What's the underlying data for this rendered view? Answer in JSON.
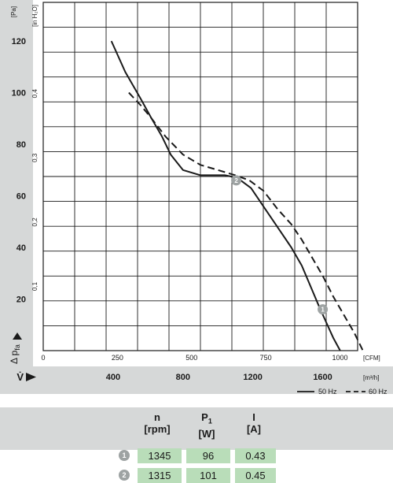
{
  "chart_data": {
    "type": "line",
    "y_unit_left": "[Pa]",
    "y_unit_right": "[in H₂O]",
    "y_ticks_pa": [
      "20",
      "40",
      "60",
      "80",
      "100",
      "120"
    ],
    "y_ticks_inh2o": [
      "0,1",
      "0,2",
      "0,3",
      "0,4"
    ],
    "y_axis_symbol": "Δ p",
    "y_axis_subscript": "fa",
    "x_unit_cfm": "[CFM]",
    "x_ticks_cfm": [
      "0",
      "250",
      "500",
      "750",
      "1000"
    ],
    "x_unit_m3h": "[m³/h]",
    "x_ticks_m3h": [
      "400",
      "800",
      "1200",
      "1600"
    ],
    "x_axis_symbol": "V̇",
    "xlim_m3h": [
      0,
      1800
    ],
    "ylim_pa": [
      0,
      135
    ],
    "series": [
      {
        "name": "50 Hz",
        "style": "solid",
        "x": [
          390,
          470,
          555,
          620,
          680,
          730,
          800,
          900,
          970,
          1040,
          1110,
          1190,
          1270,
          1350,
          1420,
          1480,
          1530,
          1580,
          1620,
          1660,
          1700
        ],
        "y": [
          120,
          108,
          98,
          90,
          83,
          76,
          70,
          68,
          68,
          68,
          67,
          63,
          55,
          47,
          40,
          33,
          25,
          17,
          11,
          5,
          0
        ]
      },
      {
        "name": "60 Hz",
        "style": "dashed",
        "x": [
          490,
          560,
          620,
          700,
          800,
          900,
          1000,
          1100,
          1180,
          1260,
          1340,
          1420,
          1480,
          1540,
          1600,
          1660,
          1720,
          1780,
          1830
        ],
        "y": [
          100,
          95,
          90,
          83,
          76,
          72,
          70,
          68,
          66,
          62,
          55,
          49,
          43,
          36,
          29,
          21,
          14,
          7,
          0
        ]
      }
    ],
    "operating_points": [
      {
        "label": "1",
        "x": 1600,
        "y": 16
      },
      {
        "label": "2",
        "x": 1105,
        "y": 66
      }
    ]
  },
  "table": {
    "headers": [
      {
        "name": "n",
        "unit": "[rpm]"
      },
      {
        "name": "P",
        "sub": "1",
        "unit": "[W]"
      },
      {
        "name": "I",
        "unit": "[A]"
      }
    ],
    "rows": [
      {
        "marker": "1",
        "n": "1345",
        "p": "96",
        "i": "0.43"
      },
      {
        "marker": "2",
        "n": "1315",
        "p": "101",
        "i": "0.45"
      }
    ]
  }
}
